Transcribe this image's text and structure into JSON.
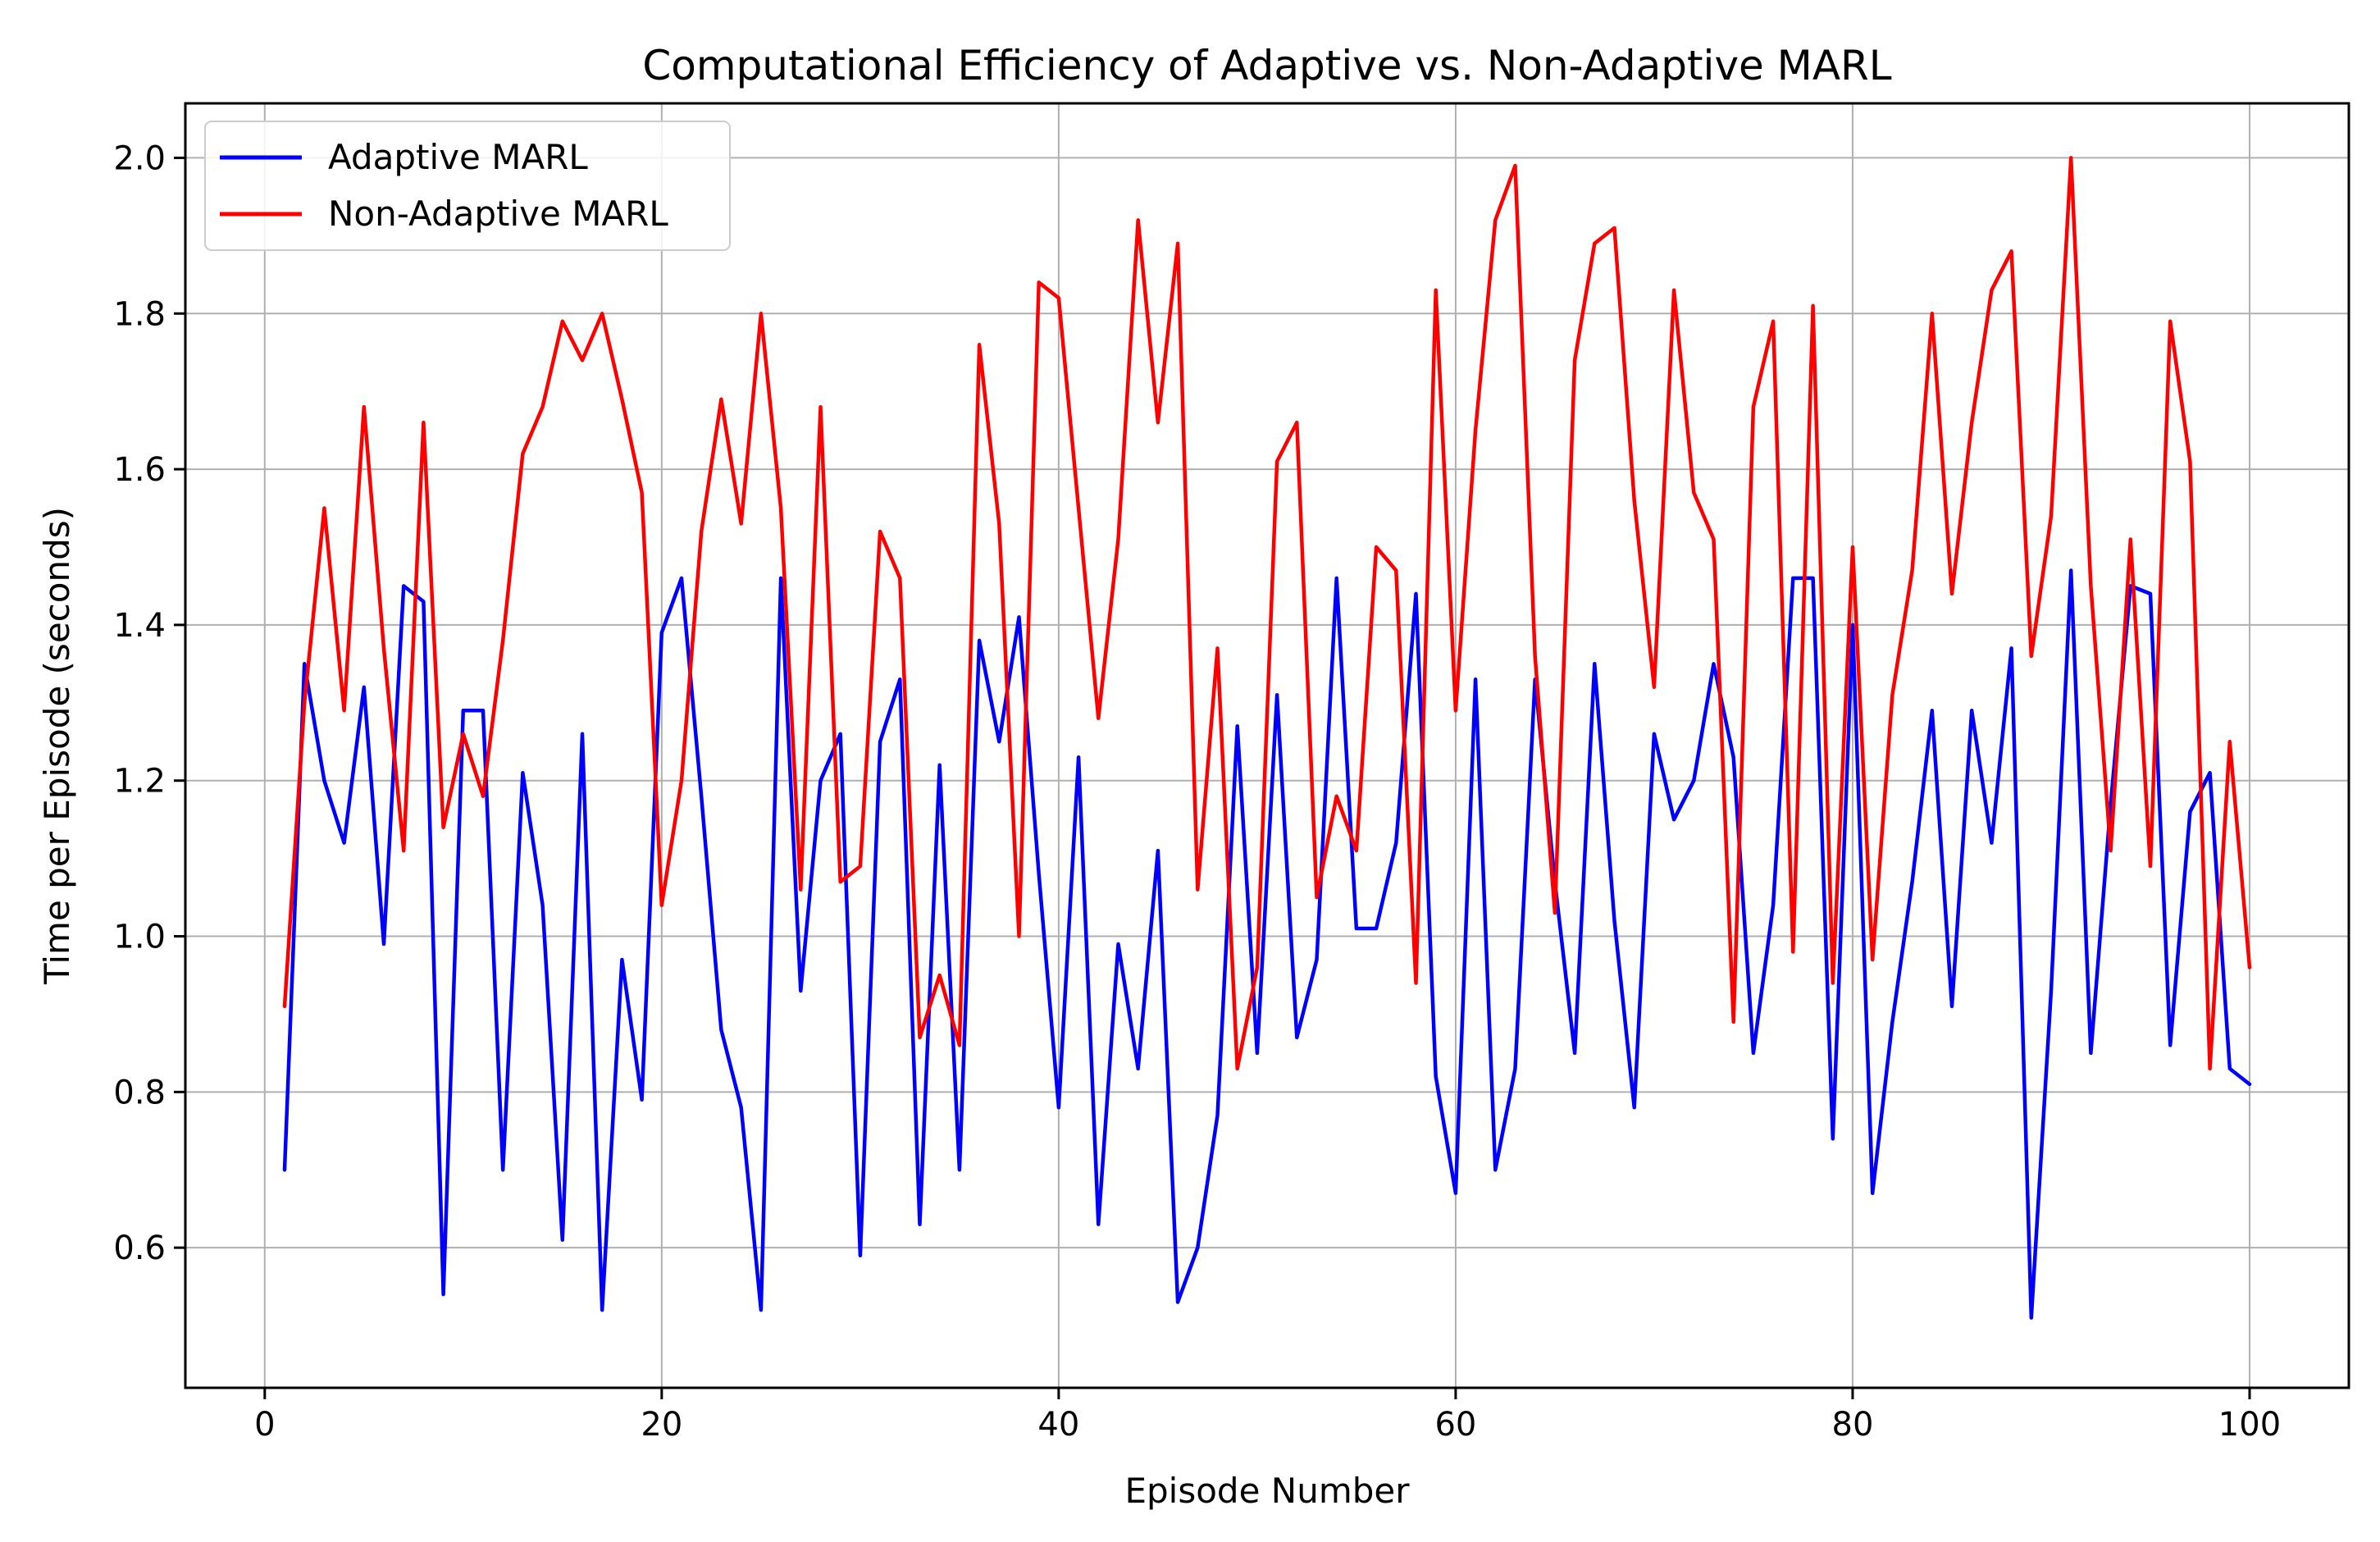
{
  "chart_data": {
    "type": "line",
    "title": "Computational Efficiency of Adaptive vs. Non-Adaptive MARL",
    "xlabel": "Episode Number",
    "ylabel": "Time per Episode (seconds)",
    "xlim": [
      -4,
      105
    ],
    "ylim": [
      0.42,
      2.07
    ],
    "xticks": [
      0,
      20,
      40,
      60,
      80,
      100
    ],
    "yticks": [
      0.6,
      0.8,
      1.0,
      1.2,
      1.4,
      1.6,
      1.8,
      2.0
    ],
    "xtick_labels": [
      "0",
      "20",
      "40",
      "60",
      "80",
      "100"
    ],
    "ytick_labels": [
      "0.6",
      "0.8",
      "1.0",
      "1.2",
      "1.4",
      "1.6",
      "1.8",
      "2.0"
    ],
    "grid": true,
    "legend_position": "top-left",
    "x": [
      1,
      2,
      3,
      4,
      5,
      6,
      7,
      8,
      9,
      10,
      11,
      12,
      13,
      14,
      15,
      16,
      17,
      18,
      19,
      20,
      21,
      22,
      23,
      24,
      25,
      26,
      27,
      28,
      29,
      30,
      31,
      32,
      33,
      34,
      35,
      36,
      37,
      38,
      39,
      40,
      41,
      42,
      43,
      44,
      45,
      46,
      47,
      48,
      49,
      50,
      51,
      52,
      53,
      54,
      55,
      56,
      57,
      58,
      59,
      60,
      61,
      62,
      63,
      64,
      65,
      66,
      67,
      68,
      69,
      70,
      71,
      72,
      73,
      74,
      75,
      76,
      77,
      78,
      79,
      80,
      81,
      82,
      83,
      84,
      85,
      86,
      87,
      88,
      89,
      90,
      91,
      92,
      93,
      94,
      95,
      96,
      97,
      98,
      99,
      100
    ],
    "series": [
      {
        "name": "Adaptive MARL",
        "color": "#0000ff",
        "values": [
          0.7,
          1.35,
          1.2,
          1.12,
          1.32,
          0.99,
          1.45,
          1.43,
          0.54,
          1.29,
          1.29,
          0.7,
          1.21,
          1.04,
          0.61,
          1.26,
          0.52,
          0.97,
          0.79,
          1.39,
          1.46,
          1.18,
          0.88,
          0.78,
          0.52,
          1.46,
          0.93,
          1.2,
          1.26,
          0.59,
          1.25,
          1.33,
          0.63,
          1.22,
          0.7,
          1.38,
          1.25,
          1.41,
          1.08,
          0.78,
          1.23,
          0.63,
          0.99,
          0.83,
          1.11,
          0.53,
          0.6,
          0.77,
          1.27,
          0.85,
          1.31,
          0.87,
          0.97,
          1.46,
          1.01,
          1.01,
          1.12,
          1.44,
          0.82,
          0.67,
          1.33,
          0.7,
          0.83,
          1.33,
          1.07,
          0.85,
          1.35,
          1.02,
          0.78,
          1.26,
          1.15,
          1.2,
          1.35,
          1.23,
          0.85,
          1.04,
          1.46,
          1.46,
          0.74,
          1.4,
          0.67,
          0.89,
          1.07,
          1.29,
          0.91,
          1.29,
          1.12,
          1.37,
          0.51,
          0.93,
          1.47,
          0.85,
          1.17,
          1.45,
          1.44,
          0.86,
          1.16,
          1.21,
          0.83,
          0.81
        ]
      },
      {
        "name": "Non-Adaptive MARL",
        "color": "#ff0000",
        "values": [
          0.91,
          1.3,
          1.55,
          1.29,
          1.68,
          1.37,
          1.11,
          1.66,
          1.14,
          1.26,
          1.18,
          1.38,
          1.62,
          1.68,
          1.79,
          1.74,
          1.8,
          1.69,
          1.57,
          1.04,
          1.2,
          1.52,
          1.69,
          1.53,
          1.8,
          1.55,
          1.06,
          1.68,
          1.07,
          1.09,
          1.52,
          1.46,
          0.87,
          0.95,
          0.86,
          1.76,
          1.53,
          1.0,
          1.84,
          1.82,
          1.55,
          1.28,
          1.51,
          1.92,
          1.66,
          1.89,
          1.06,
          1.37,
          0.83,
          0.96,
          1.61,
          1.66,
          1.05,
          1.18,
          1.11,
          1.5,
          1.47,
          0.94,
          1.83,
          1.29,
          1.65,
          1.92,
          1.99,
          1.36,
          1.03,
          1.74,
          1.89,
          1.91,
          1.56,
          1.32,
          1.83,
          1.57,
          1.51,
          0.89,
          1.68,
          1.79,
          0.98,
          1.81,
          0.94,
          1.5,
          0.97,
          1.31,
          1.47,
          1.8,
          1.44,
          1.66,
          1.83,
          1.88,
          1.36,
          1.54,
          2.0,
          1.45,
          1.11,
          1.51,
          1.09,
          1.79,
          1.61,
          0.83,
          1.25,
          0.96
        ]
      }
    ]
  }
}
